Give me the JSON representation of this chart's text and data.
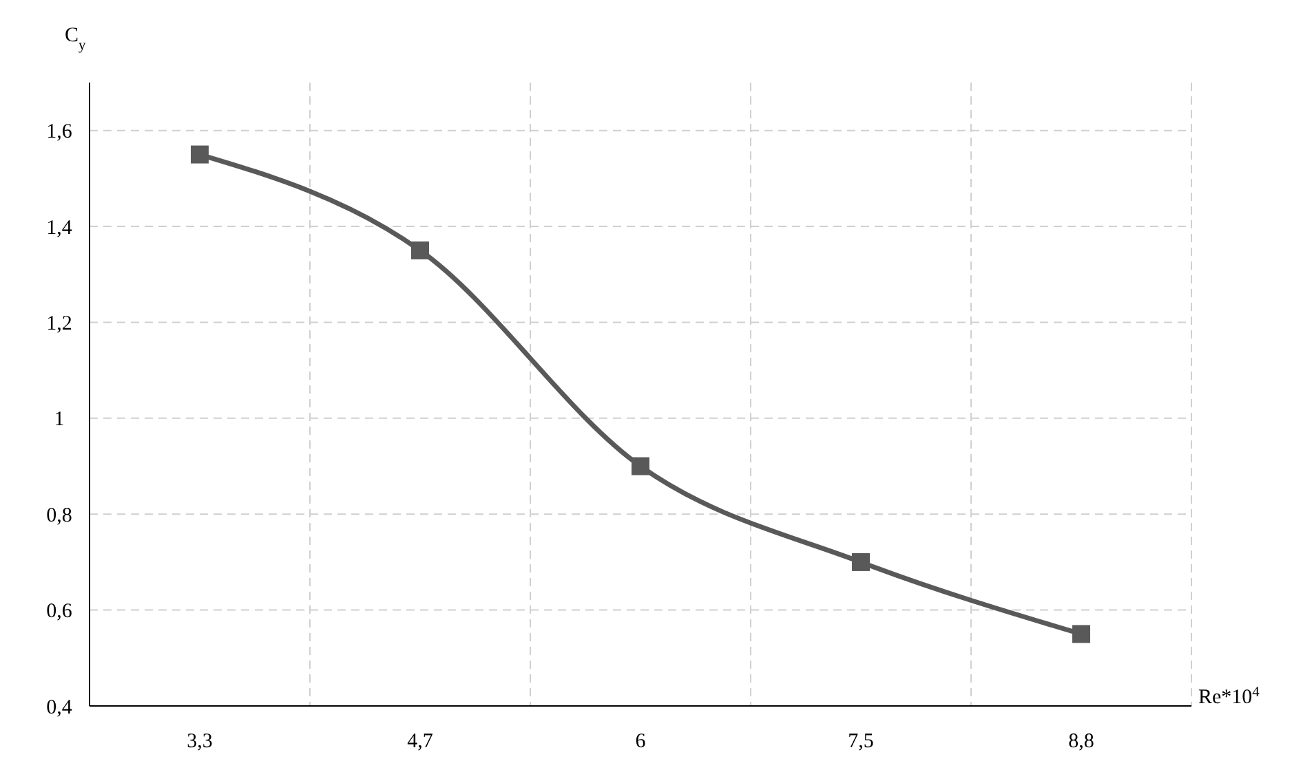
{
  "chart_data": {
    "type": "line",
    "xlabel": "Re*10$^{4}$",
    "ylabel": "C$_{y}$",
    "categories": [
      "3,3",
      "4,7",
      "6",
      "7,5",
      "8,8"
    ],
    "series": [
      {
        "color": "#595959",
        "values": [
          1.55,
          1.35,
          0.9,
          0.7,
          0.55
        ]
      }
    ],
    "ylim": [
      0.4,
      1.7
    ],
    "yticks": [
      {
        "value": 0.4,
        "label": "0,4"
      },
      {
        "value": 0.6,
        "label": "0,6"
      },
      {
        "value": 0.8,
        "label": "0,8"
      },
      1,
      {
        "value": 1.2,
        "label": "1,2"
      },
      {
        "value": 1.4,
        "label": "1,4"
      },
      {
        "value": 1.6,
        "label": "1,6"
      }
    ],
    "grid": true,
    "marker": "square",
    "line_style": "solid"
  }
}
